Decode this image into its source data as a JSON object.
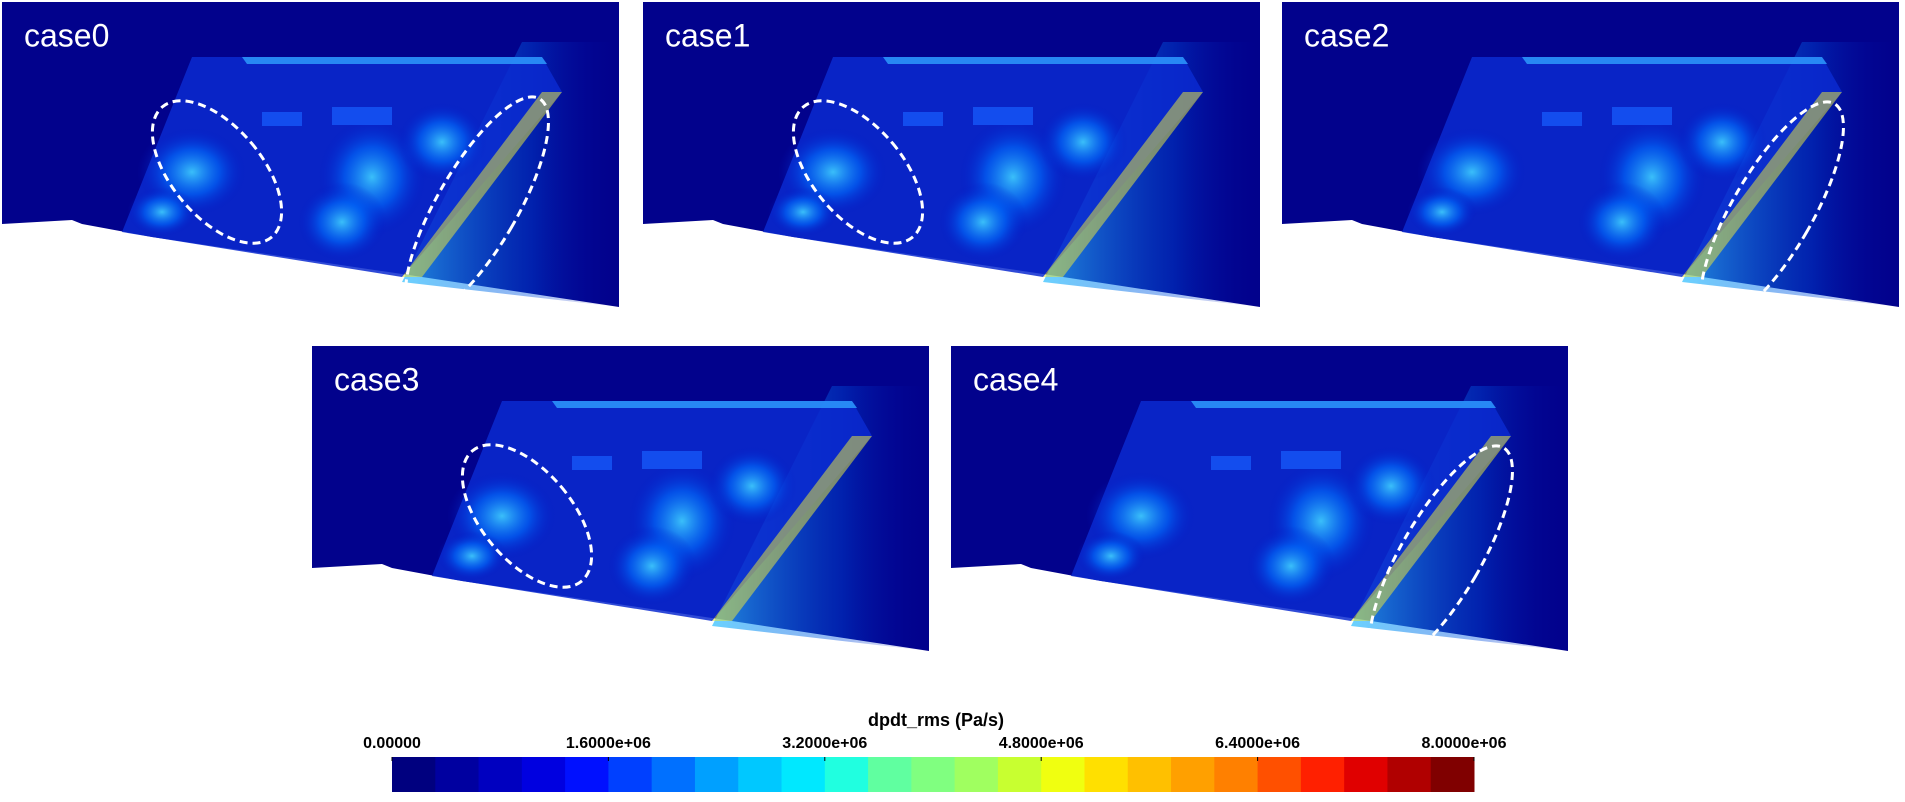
{
  "panels": [
    {
      "label": "case0"
    },
    {
      "label": "case1"
    },
    {
      "label": "case2"
    },
    {
      "label": "case3"
    },
    {
      "label": "case4"
    }
  ],
  "colorbar": {
    "title": "dpdt_rms (Pa/s)",
    "range": [
      0,
      8000000
    ],
    "ticks": [
      {
        "value": 0,
        "label": "0.00000"
      },
      {
        "value": 1600000,
        "label": "1.6000e+06"
      },
      {
        "value": 3200000,
        "label": "3.2000e+06"
      },
      {
        "value": 4800000,
        "label": "4.8000e+06"
      },
      {
        "value": 6400000,
        "label": "6.4000e+06"
      },
      {
        "value": 8000000,
        "label": "8.0000e+06"
      }
    ],
    "colors": [
      "#00007f",
      "#0000a0",
      "#0000c0",
      "#0000e0",
      "#0010ff",
      "#0040ff",
      "#0070ff",
      "#00a0ff",
      "#00c8ff",
      "#00e8ff",
      "#20ffe0",
      "#60ffa0",
      "#80ff80",
      "#a0ff60",
      "#c8ff30",
      "#f0ff10",
      "#ffe000",
      "#ffc000",
      "#ffa000",
      "#ff8000",
      "#ff5000",
      "#ff2000",
      "#e00000",
      "#b00000",
      "#800000"
    ]
  }
}
